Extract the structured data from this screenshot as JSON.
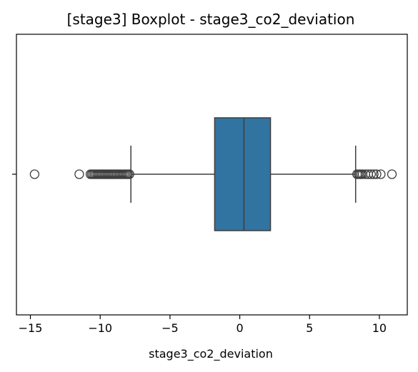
{
  "chart_data": {
    "type": "boxplot",
    "orientation": "horizontal",
    "title": "[stage3] Boxplot - stage3_co2_deviation",
    "xlabel": "stage3_co2_deviation",
    "ylabel": "",
    "xlim": [
      -16,
      12
    ],
    "xticks": [
      -15,
      -10,
      -5,
      0,
      5,
      10
    ],
    "xtick_labels": [
      "−15",
      "−10",
      "−5",
      "0",
      "5",
      "10"
    ],
    "grid": false,
    "legend": "none",
    "box_color": "#3274a1",
    "line_color": "#3d3d3d",
    "stats": {
      "q1": -1.8,
      "median": 0.3,
      "q3": 2.2,
      "whisker_low": -7.8,
      "whisker_high": 8.3
    },
    "outliers_low": [
      -14.7,
      -11.5,
      -10.7,
      -10.6,
      -10.5,
      -10.4,
      -10.3,
      -10.2,
      -10.1,
      -10.0,
      -9.9,
      -9.8,
      -9.7,
      -9.6,
      -9.5,
      -9.4,
      -9.3,
      -9.2,
      -9.1,
      -9.0,
      -8.9,
      -8.8,
      -8.7,
      -8.6,
      -8.5,
      -8.4,
      -8.3,
      -8.2,
      -8.1,
      -8.0,
      -7.9
    ],
    "outliers_high": [
      8.4,
      8.5,
      8.6,
      8.7,
      8.8,
      9.0,
      9.2,
      9.4,
      9.6,
      9.8,
      10.1,
      10.9
    ]
  }
}
